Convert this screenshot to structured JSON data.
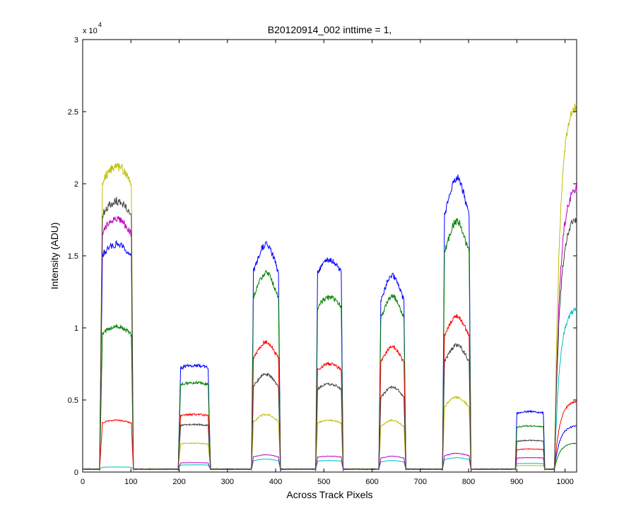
{
  "chart_data": {
    "type": "line",
    "title": "B20120914_002 inttime = 1,",
    "xlabel": "Across Track Pixels",
    "ylabel": "Intensity (ADU)",
    "xlim": [
      0,
      1024
    ],
    "ylim": [
      0,
      30000
    ],
    "y_exponent_label": "x 10",
    "y_exponent_power": "4",
    "grid": false,
    "legend": "none",
    "x_ticks": [
      0,
      100,
      200,
      300,
      400,
      500,
      600,
      700,
      800,
      900,
      1000
    ],
    "x_tick_labels": [
      "0",
      "100",
      "200",
      "300",
      "400",
      "500",
      "600",
      "700",
      "800",
      "900",
      "1000"
    ],
    "y_ticks": [
      0,
      5000,
      10000,
      15000,
      20000,
      25000,
      30000
    ],
    "y_tick_labels": [
      "0",
      "0.5",
      "1",
      "1.5",
      "2",
      "2.5",
      "3"
    ],
    "baseline": 200,
    "segments": [
      {
        "x0": 35,
        "x1": 105,
        "rise": 6,
        "fall": 4,
        "shape": "rounded"
      },
      {
        "x0": 198,
        "x1": 265,
        "rise": 5,
        "fall": 5,
        "shape": "flat"
      },
      {
        "x0": 350,
        "x1": 410,
        "rise": 4,
        "fall": 4,
        "shape": "peak"
      },
      {
        "x0": 483,
        "x1": 540,
        "rise": 4,
        "fall": 4,
        "shape": "rounded"
      },
      {
        "x0": 614,
        "x1": 670,
        "rise": 4,
        "fall": 4,
        "shape": "peak"
      },
      {
        "x0": 746,
        "x1": 805,
        "rise": 4,
        "fall": 4,
        "shape": "peak"
      },
      {
        "x0": 897,
        "x1": 958,
        "rise": 3,
        "fall": 3,
        "shape": "flat"
      },
      {
        "x0": 978,
        "x1": 1024,
        "rise": 0,
        "fall": 0,
        "shape": "ramp"
      }
    ],
    "series": [
      {
        "color": "#0000ff",
        "levels": [
          15800,
          7400,
          15800,
          14700,
          13600,
          20400,
          4200,
          3200
        ]
      },
      {
        "color": "#008000",
        "levels": [
          10100,
          6200,
          13800,
          12100,
          12200,
          17400,
          3200,
          2000
        ]
      },
      {
        "color": "#ff0000",
        "levels": [
          3600,
          4000,
          9000,
          7500,
          8700,
          10800,
          1600,
          4900
        ]
      },
      {
        "color": "#00bfbf",
        "levels": [
          350,
          500,
          900,
          800,
          800,
          1000,
          600,
          11300
        ]
      },
      {
        "color": "#bf00bf",
        "levels": [
          17500,
          650,
          1200,
          1100,
          1100,
          1300,
          1000,
          19700
        ]
      },
      {
        "color": "#bfbf00",
        "levels": [
          21200,
          2000,
          4000,
          3600,
          3600,
          5200,
          450,
          25500
        ]
      },
      {
        "color": "#404040",
        "levels": [
          18800,
          3300,
          6800,
          6100,
          5900,
          8800,
          2200,
          17600
        ]
      }
    ]
  }
}
